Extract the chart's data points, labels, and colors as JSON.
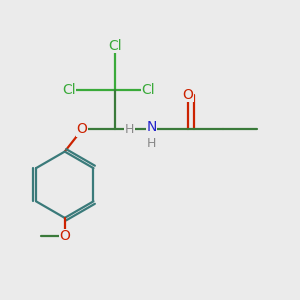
{
  "background_color": "#ebebeb",
  "colors": {
    "C_bond": "#3a7a3a",
    "Cl": "#3aaa3a",
    "O": "#cc2200",
    "N": "#2222cc",
    "H": "#888888",
    "ring": "#3a7a7a"
  },
  "layout": {
    "figsize": [
      3.0,
      3.0
    ],
    "dpi": 100,
    "xlim": [
      0.0,
      1.0
    ],
    "ylim": [
      0.0,
      1.0
    ]
  }
}
